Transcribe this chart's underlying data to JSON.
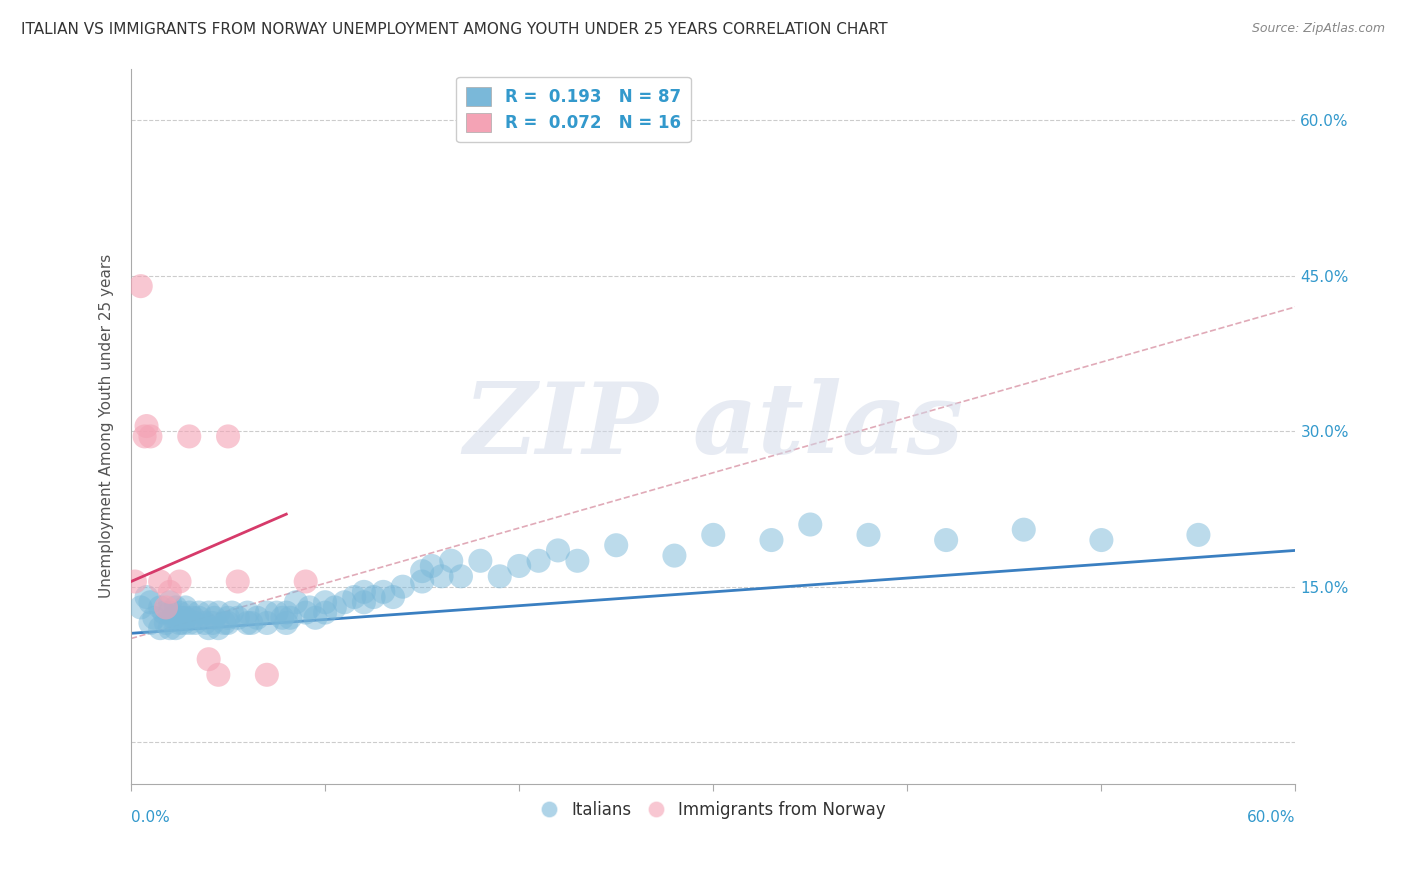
{
  "title": "ITALIAN VS IMMIGRANTS FROM NORWAY UNEMPLOYMENT AMONG YOUTH UNDER 25 YEARS CORRELATION CHART",
  "source": "Source: ZipAtlas.com",
  "ylabel": "Unemployment Among Youth under 25 years",
  "yticks": [
    0.0,
    0.15,
    0.3,
    0.45,
    0.6
  ],
  "ytick_labels": [
    "",
    "15.0%",
    "30.0%",
    "45.0%",
    "60.0%"
  ],
  "xlim": [
    0.0,
    0.6
  ],
  "ylim": [
    -0.04,
    0.65
  ],
  "legend_R_blue": "R =  0.193",
  "legend_N_blue": "N = 87",
  "legend_R_pink": "R =  0.072",
  "legend_N_pink": "N = 16",
  "italians_x": [
    0.005,
    0.008,
    0.01,
    0.01,
    0.012,
    0.015,
    0.015,
    0.017,
    0.018,
    0.02,
    0.02,
    0.02,
    0.022,
    0.023,
    0.023,
    0.025,
    0.025,
    0.026,
    0.027,
    0.028,
    0.028,
    0.03,
    0.03,
    0.032,
    0.033,
    0.035,
    0.035,
    0.038,
    0.04,
    0.04,
    0.042,
    0.043,
    0.045,
    0.045,
    0.048,
    0.05,
    0.05,
    0.052,
    0.055,
    0.06,
    0.06,
    0.062,
    0.065,
    0.07,
    0.07,
    0.075,
    0.078,
    0.08,
    0.08,
    0.082,
    0.085,
    0.09,
    0.092,
    0.095,
    0.1,
    0.1,
    0.105,
    0.11,
    0.115,
    0.12,
    0.12,
    0.125,
    0.13,
    0.135,
    0.14,
    0.15,
    0.15,
    0.155,
    0.16,
    0.165,
    0.17,
    0.18,
    0.19,
    0.2,
    0.21,
    0.22,
    0.23,
    0.25,
    0.28,
    0.3,
    0.33,
    0.35,
    0.38,
    0.42,
    0.46,
    0.5,
    0.55
  ],
  "italians_y": [
    0.13,
    0.14,
    0.115,
    0.135,
    0.12,
    0.11,
    0.13,
    0.125,
    0.115,
    0.11,
    0.125,
    0.135,
    0.12,
    0.11,
    0.13,
    0.115,
    0.125,
    0.12,
    0.115,
    0.13,
    0.12,
    0.115,
    0.125,
    0.12,
    0.115,
    0.125,
    0.12,
    0.115,
    0.11,
    0.125,
    0.115,
    0.12,
    0.11,
    0.125,
    0.115,
    0.12,
    0.115,
    0.125,
    0.12,
    0.115,
    0.125,
    0.115,
    0.12,
    0.125,
    0.115,
    0.125,
    0.12,
    0.115,
    0.125,
    0.12,
    0.135,
    0.125,
    0.13,
    0.12,
    0.135,
    0.125,
    0.13,
    0.135,
    0.14,
    0.145,
    0.135,
    0.14,
    0.145,
    0.14,
    0.15,
    0.155,
    0.165,
    0.17,
    0.16,
    0.175,
    0.16,
    0.175,
    0.16,
    0.17,
    0.175,
    0.185,
    0.175,
    0.19,
    0.18,
    0.2,
    0.195,
    0.21,
    0.2,
    0.195,
    0.205,
    0.195,
    0.2
  ],
  "norway_x": [
    0.002,
    0.005,
    0.007,
    0.008,
    0.01,
    0.015,
    0.018,
    0.02,
    0.025,
    0.03,
    0.04,
    0.045,
    0.05,
    0.055,
    0.07,
    0.09
  ],
  "norway_y": [
    0.155,
    0.44,
    0.295,
    0.305,
    0.295,
    0.155,
    0.13,
    0.145,
    0.155,
    0.295,
    0.08,
    0.065,
    0.295,
    0.155,
    0.065,
    0.155
  ],
  "italian_trendline_x": [
    0.0,
    0.6
  ],
  "italian_trendline_y": [
    0.105,
    0.185
  ],
  "norway_trendline_x": [
    0.0,
    0.08
  ],
  "norway_trendline_y": [
    0.155,
    0.22
  ],
  "full_trendline_x": [
    0.0,
    0.6
  ],
  "full_trendline_y": [
    0.1,
    0.42
  ],
  "scatter_blue": "#7ab8d9",
  "scatter_pink": "#f4a3b5",
  "trendline_blue": "#3a7fc1",
  "trendline_pink": "#d63a6a",
  "trendline_dashed_color": "#d4879a",
  "background_color": "#ffffff",
  "grid_color": "#cccccc",
  "title_fontsize": 11,
  "axis_label_fontsize": 11,
  "tick_fontsize": 11,
  "watermark_text": "ZIP atlas"
}
